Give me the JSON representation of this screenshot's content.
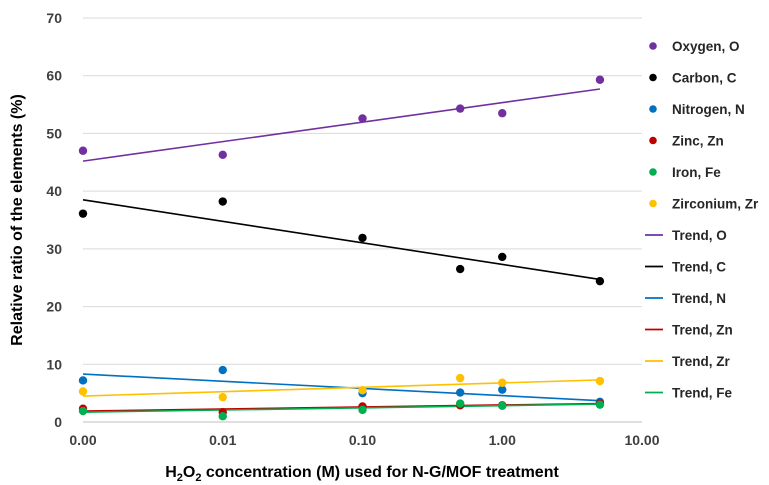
{
  "chart_data": {
    "type": "scatter",
    "xscale": "log",
    "ylim": [
      0,
      70
    ],
    "xlim": [
      0.001,
      10
    ],
    "grid": "horizontal",
    "legend_position": "right",
    "xlabel_parts": {
      "pre": "H",
      "sub": "2",
      "mid": "O",
      "sub2": "2",
      "post": " concentration (M) used for N-G/MOF treatment"
    },
    "ylabel": "Relative ratio of the elements  (%)",
    "xtick_labels": [
      "0.00",
      "0.01",
      "0.10",
      "1.00",
      "10.00"
    ],
    "xtick_values": [
      0.001,
      0.01,
      0.1,
      1,
      10
    ],
    "ytick_values": [
      0,
      10,
      20,
      30,
      40,
      50,
      60,
      70
    ],
    "ytick_labels": [
      "0",
      "10",
      "20",
      "30",
      "40",
      "50",
      "60",
      "70"
    ],
    "x": [
      0.001,
      0.01,
      0.1,
      0.5,
      1,
      5
    ],
    "series": [
      {
        "name": "Oxygen, O",
        "color": "#7030a0",
        "y": [
          47.0,
          46.3,
          52.6,
          54.3,
          53.5,
          59.3
        ]
      },
      {
        "name": "Carbon, C",
        "color": "#000000",
        "y": [
          36.1,
          38.2,
          31.9,
          26.5,
          28.6,
          24.4
        ]
      },
      {
        "name": "Nitrogen, N",
        "color": "#0070c0",
        "y": [
          7.2,
          9.0,
          5.0,
          5.1,
          5.6,
          3.5
        ]
      },
      {
        "name": "Zinc, Zn",
        "color": "#c00000",
        "y": [
          2.3,
          1.7,
          2.7,
          2.9,
          2.9,
          3.2
        ]
      },
      {
        "name": "Iron, Fe",
        "color": "#00b050",
        "y": [
          1.9,
          1.0,
          2.1,
          3.2,
          2.8,
          3.0
        ]
      },
      {
        "name": "Zirconium, Zr",
        "color": "#ffc000",
        "y": [
          5.3,
          4.3,
          5.5,
          7.6,
          6.8,
          7.1
        ]
      }
    ],
    "trends": [
      {
        "name": "Trend, O",
        "color": "#7030a0",
        "y_start": 45.2,
        "y_end": 57.7
      },
      {
        "name": "Trend, C",
        "color": "#000000",
        "y_start": 38.5,
        "y_end": 24.7
      },
      {
        "name": "Trend, N",
        "color": "#0070c0",
        "y_start": 8.3,
        "y_end": 3.7
      },
      {
        "name": "Trend, Zn",
        "color": "#c00000",
        "y_start": 1.9,
        "y_end": 3.2
      },
      {
        "name": "Trend, Zr",
        "color": "#ffc000",
        "y_start": 4.5,
        "y_end": 7.3
      },
      {
        "name": "Trend, Fe",
        "color": "#00b050",
        "y_start": 1.7,
        "y_end": 3.1
      }
    ],
    "trend_x_range": [
      0.001,
      5
    ]
  }
}
